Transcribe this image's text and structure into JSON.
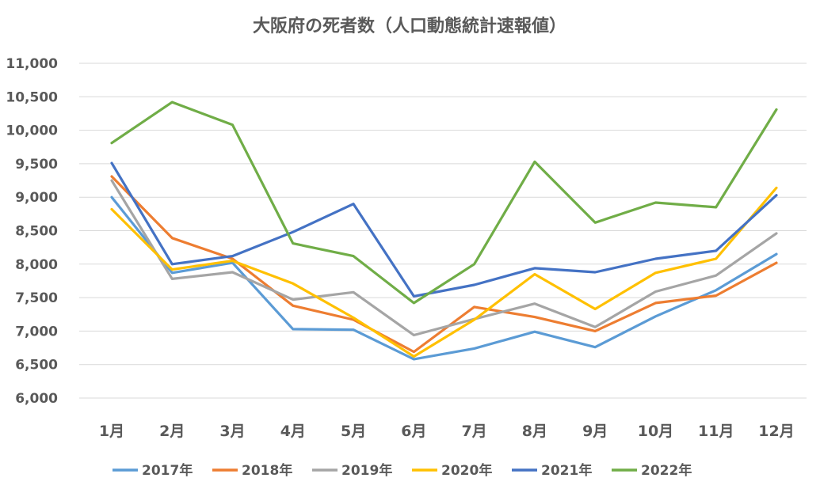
{
  "chart_data": {
    "type": "line",
    "title": "大阪府の死者数（人口動態統計速報値）",
    "xlabel": "",
    "ylabel": "",
    "ylim": [
      6000,
      11000
    ],
    "ystep": 500,
    "yticks": [
      "6,000",
      "6,500",
      "7,000",
      "7,500",
      "8,000",
      "8,500",
      "9,000",
      "9,500",
      "10,000",
      "10,500",
      "11,000"
    ],
    "categories": [
      "1月",
      "2月",
      "3月",
      "4月",
      "5月",
      "6月",
      "7月",
      "8月",
      "9月",
      "10月",
      "11月",
      "12月"
    ],
    "grid": true,
    "legend_position": "bottom",
    "series": [
      {
        "name": "2017年",
        "color": "#5b9bd5",
        "values": [
          9000,
          7870,
          8020,
          7030,
          7020,
          6580,
          6740,
          6990,
          6760,
          7220,
          7610,
          8150
        ]
      },
      {
        "name": "2018年",
        "color": "#ed7d31",
        "values": [
          9310,
          8390,
          8080,
          7380,
          7170,
          6690,
          7360,
          7210,
          7000,
          7420,
          7530,
          8020
        ]
      },
      {
        "name": "2019年",
        "color": "#a5a5a5",
        "values": [
          9250,
          7780,
          7880,
          7470,
          7580,
          6940,
          7180,
          7410,
          7060,
          7590,
          7830,
          8460
        ]
      },
      {
        "name": "2020年",
        "color": "#ffc000",
        "values": [
          8820,
          7920,
          8050,
          7710,
          7200,
          6620,
          7170,
          7850,
          7330,
          7870,
          8080,
          9140
        ]
      },
      {
        "name": "2021年",
        "color": "#4472c4",
        "values": [
          9510,
          8000,
          8120,
          8480,
          8900,
          7520,
          7690,
          7940,
          7880,
          8080,
          8200,
          9030
        ]
      },
      {
        "name": "2022年",
        "color": "#70ad47",
        "values": [
          9810,
          10420,
          10080,
          8310,
          8120,
          7420,
          8000,
          9530,
          8620,
          8920,
          8850,
          10310
        ]
      }
    ]
  }
}
